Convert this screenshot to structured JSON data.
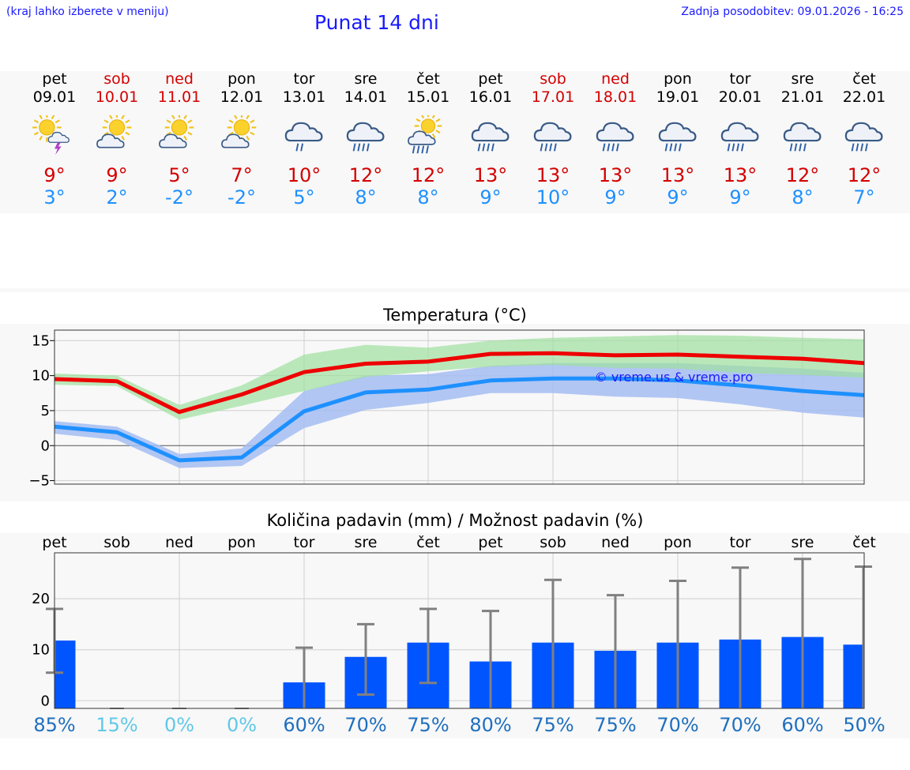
{
  "header": {
    "hint": "(kraj lahko izberete v meniju)",
    "title": "Punat 14 dni",
    "updated": "Zadnja posodobitev: 09.01.2026 - 16:25"
  },
  "forecast": {
    "days": [
      {
        "name": "pet",
        "date": "09.01",
        "weekend": false,
        "icon": "sun-cloud-lightning-icon",
        "max": "9°",
        "min": "3°"
      },
      {
        "name": "sob",
        "date": "10.01",
        "weekend": true,
        "icon": "sun-cloud-icon",
        "max": "9°",
        "min": "2°"
      },
      {
        "name": "ned",
        "date": "11.01",
        "weekend": true,
        "icon": "sun-cloud-icon",
        "max": "5°",
        "min": "-2°"
      },
      {
        "name": "pon",
        "date": "12.01",
        "weekend": false,
        "icon": "sun-cloud-icon",
        "max": "7°",
        "min": "-2°"
      },
      {
        "name": "tor",
        "date": "13.01",
        "weekend": false,
        "icon": "cloud-light-rain-icon",
        "max": "10°",
        "min": "5°"
      },
      {
        "name": "sre",
        "date": "14.01",
        "weekend": false,
        "icon": "cloud-rain-icon",
        "max": "12°",
        "min": "8°"
      },
      {
        "name": "čet",
        "date": "15.01",
        "weekend": false,
        "icon": "sun-cloud-rain-icon",
        "max": "12°",
        "min": "8°"
      },
      {
        "name": "pet",
        "date": "16.01",
        "weekend": false,
        "icon": "cloud-rain-icon",
        "max": "13°",
        "min": "9°"
      },
      {
        "name": "sob",
        "date": "17.01",
        "weekend": true,
        "icon": "cloud-rain-icon",
        "max": "13°",
        "min": "10°"
      },
      {
        "name": "ned",
        "date": "18.01",
        "weekend": true,
        "icon": "cloud-rain-icon",
        "max": "13°",
        "min": "9°"
      },
      {
        "name": "pon",
        "date": "19.01",
        "weekend": false,
        "icon": "cloud-rain-icon",
        "max": "13°",
        "min": "9°"
      },
      {
        "name": "tor",
        "date": "20.01",
        "weekend": false,
        "icon": "cloud-rain-icon",
        "max": "13°",
        "min": "9°"
      },
      {
        "name": "sre",
        "date": "21.01",
        "weekend": false,
        "icon": "cloud-rain-icon",
        "max": "12°",
        "min": "8°"
      },
      {
        "name": "čet",
        "date": "22.01",
        "weekend": false,
        "icon": "cloud-rain-icon",
        "max": "12°",
        "min": "7°"
      }
    ]
  },
  "colors": {
    "max_line": "#ee0000",
    "min_line": "#1e90ff",
    "max_band": "#9ee09e",
    "min_band": "#a5bdf2",
    "bar": "#0055ff",
    "whisker": "#808080",
    "pct_dark": "#1f6fbf",
    "pct_light": "#5fc8e8"
  },
  "chart_data": [
    {
      "type": "line",
      "title": "Temperatura (°C)",
      "watermark": "© vreme.us & vreme.pro",
      "xlabel": "",
      "ylabel": "",
      "ylim": [
        -5.5,
        16.5
      ],
      "yticks": [
        -5,
        0,
        5,
        10,
        15
      ],
      "ytick_labels": [
        "−5",
        "0",
        "5",
        "10",
        "15"
      ],
      "grid": true,
      "series": [
        {
          "name": "max",
          "values": [
            9.5,
            9.2,
            4.8,
            7.3,
            10.5,
            11.7,
            12.0,
            13.1,
            13.2,
            12.9,
            13.0,
            12.7,
            12.4,
            11.8
          ]
        },
        {
          "name": "max_upper",
          "values": [
            10.3,
            10.0,
            5.8,
            8.6,
            13.0,
            14.4,
            14.0,
            15.0,
            15.4,
            15.6,
            15.8,
            15.7,
            15.4,
            15.2
          ]
        },
        {
          "name": "max_lower",
          "values": [
            8.7,
            8.5,
            3.7,
            5.7,
            7.8,
            9.8,
            10.6,
            11.3,
            11.5,
            11.1,
            11.0,
            10.4,
            10.1,
            9.7
          ]
        },
        {
          "name": "min",
          "values": [
            2.7,
            1.9,
            -2.1,
            -1.7,
            4.9,
            7.6,
            8.0,
            9.3,
            9.6,
            9.6,
            9.3,
            8.6,
            7.8,
            7.2
          ]
        },
        {
          "name": "min_upper",
          "values": [
            3.5,
            2.7,
            -1.2,
            -0.4,
            7.8,
            10.0,
            10.2,
            11.4,
            11.8,
            11.8,
            11.8,
            11.4,
            11.0,
            10.4
          ]
        },
        {
          "name": "min_lower",
          "values": [
            1.7,
            0.8,
            -3.2,
            -2.9,
            2.5,
            5.1,
            6.1,
            7.5,
            7.5,
            7.0,
            6.8,
            5.9,
            4.7,
            4.0
          ]
        }
      ]
    },
    {
      "type": "bar",
      "title": "Količina padavin (mm) / Možnost padavin (%)",
      "categories": [
        "pet",
        "sob",
        "ned",
        "pon",
        "tor",
        "sre",
        "čet",
        "pet",
        "sob",
        "ned",
        "pon",
        "tor",
        "sre",
        "čet"
      ],
      "ylim": [
        -1.5,
        29
      ],
      "yticks": [
        0,
        10,
        20
      ],
      "ytick_labels": [
        "0",
        "10",
        "20"
      ],
      "values": [
        11.8,
        0,
        0,
        0,
        3.6,
        8.6,
        11.4,
        7.7,
        11.4,
        9.8,
        11.4,
        12.0,
        12.5,
        11.0
      ],
      "error_low": [
        5.5,
        0,
        0,
        0,
        0,
        1.2,
        3.5,
        0,
        0,
        0,
        0,
        0,
        0,
        0
      ],
      "error_high": [
        18.0,
        0,
        0,
        0,
        10.4,
        15.0,
        18.0,
        17.6,
        23.7,
        20.7,
        23.5,
        26.1,
        27.8,
        26.3
      ],
      "probability": [
        "85%",
        "15%",
        "0%",
        "0%",
        "60%",
        "70%",
        "75%",
        "80%",
        "75%",
        "75%",
        "70%",
        "70%",
        "60%",
        "50%"
      ]
    }
  ]
}
